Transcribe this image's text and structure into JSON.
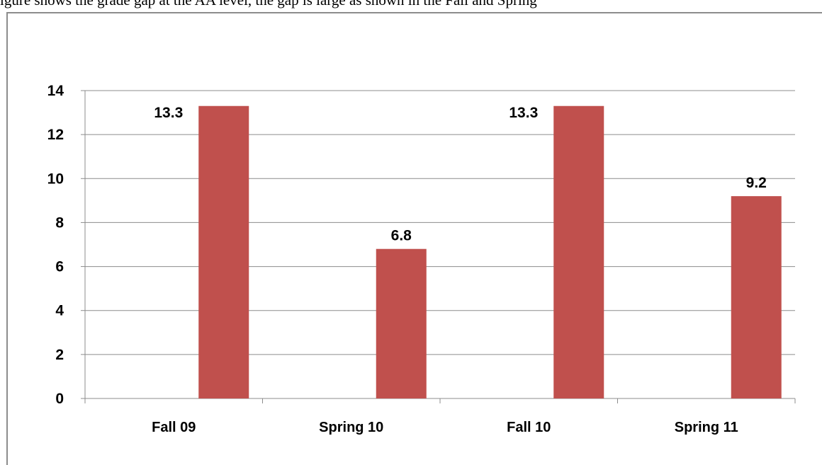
{
  "caption_text": "igure shows the grade gap at the AA level, the gap is large as shown in the Fall and Spring",
  "chart_data": {
    "type": "bar",
    "categories": [
      "Fall 09",
      "Spring 10",
      "Fall 10",
      "Spring 11"
    ],
    "values": [
      13.3,
      6.8,
      13.3,
      9.2
    ],
    "data_labels": [
      "13.3",
      "6.8",
      "13.3",
      "9.2"
    ],
    "ylim": [
      0,
      14
    ],
    "yticks": [
      0,
      2,
      4,
      6,
      8,
      10,
      12,
      14
    ],
    "grid": true,
    "legend": "none",
    "bar_color": "#C0504D",
    "title": "",
    "xlabel": "",
    "ylabel": ""
  }
}
